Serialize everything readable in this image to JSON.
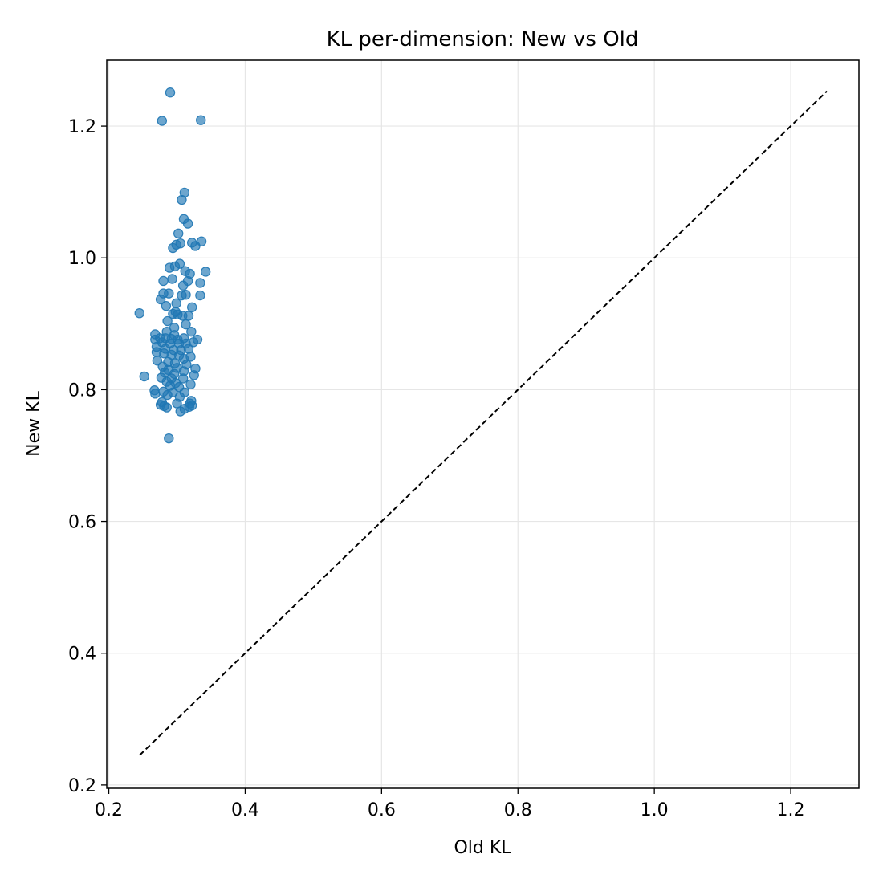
{
  "chart_data": {
    "type": "scatter",
    "title": "KL per-dimension: New vs Old",
    "xlabel": "Old KL",
    "ylabel": "New KL",
    "xlim": [
      0.197,
      1.3
    ],
    "ylim": [
      0.195,
      1.3
    ],
    "xticks": [
      0.2,
      0.4,
      0.6,
      0.8,
      1.0,
      1.2
    ],
    "xtick_labels": [
      "0.2",
      "0.4",
      "0.6",
      "0.8",
      "1.0",
      "1.2"
    ],
    "yticks": [
      0.2,
      0.4,
      0.6,
      0.8,
      1.0,
      1.2
    ],
    "ytick_labels": [
      "0.2",
      "0.4",
      "0.6",
      "0.8",
      "1.0",
      "1.2"
    ],
    "grid": true,
    "point_color": "#1f77b4",
    "point_alpha": 0.65,
    "reference_line": {
      "style": "dashed",
      "color": "#000000",
      "from": [
        0.245,
        0.245
      ],
      "to": [
        1.253,
        1.253
      ]
    },
    "points": [
      [
        0.29,
        1.251
      ],
      [
        0.278,
        1.208
      ],
      [
        0.335,
        1.209
      ],
      [
        0.311,
        1.099
      ],
      [
        0.307,
        1.088
      ],
      [
        0.31,
        1.059
      ],
      [
        0.316,
        1.052
      ],
      [
        0.302,
        1.037
      ],
      [
        0.336,
        1.025
      ],
      [
        0.322,
        1.023
      ],
      [
        0.305,
        1.022
      ],
      [
        0.299,
        1.02
      ],
      [
        0.294,
        1.015
      ],
      [
        0.327,
        1.018
      ],
      [
        0.304,
        0.991
      ],
      [
        0.297,
        0.987
      ],
      [
        0.289,
        0.985
      ],
      [
        0.312,
        0.98
      ],
      [
        0.342,
        0.979
      ],
      [
        0.319,
        0.976
      ],
      [
        0.293,
        0.968
      ],
      [
        0.28,
        0.965
      ],
      [
        0.334,
        0.962
      ],
      [
        0.316,
        0.965
      ],
      [
        0.309,
        0.958
      ],
      [
        0.288,
        0.946
      ],
      [
        0.28,
        0.946
      ],
      [
        0.313,
        0.944
      ],
      [
        0.307,
        0.943
      ],
      [
        0.334,
        0.943
      ],
      [
        0.276,
        0.937
      ],
      [
        0.299,
        0.931
      ],
      [
        0.284,
        0.927
      ],
      [
        0.322,
        0.925
      ],
      [
        0.298,
        0.918
      ],
      [
        0.301,
        0.914
      ],
      [
        0.294,
        0.915
      ],
      [
        0.245,
        0.916
      ],
      [
        0.317,
        0.912
      ],
      [
        0.308,
        0.912
      ],
      [
        0.286,
        0.904
      ],
      [
        0.313,
        0.899
      ],
      [
        0.296,
        0.894
      ],
      [
        0.285,
        0.888
      ],
      [
        0.296,
        0.883
      ],
      [
        0.321,
        0.888
      ],
      [
        0.268,
        0.884
      ],
      [
        0.275,
        0.878
      ],
      [
        0.283,
        0.878
      ],
      [
        0.292,
        0.877
      ],
      [
        0.301,
        0.876
      ],
      [
        0.31,
        0.878
      ],
      [
        0.33,
        0.876
      ],
      [
        0.268,
        0.876
      ],
      [
        0.278,
        0.872
      ],
      [
        0.29,
        0.87
      ],
      [
        0.303,
        0.87
      ],
      [
        0.313,
        0.87
      ],
      [
        0.324,
        0.872
      ],
      [
        0.27,
        0.865
      ],
      [
        0.283,
        0.862
      ],
      [
        0.295,
        0.86
      ],
      [
        0.306,
        0.86
      ],
      [
        0.317,
        0.862
      ],
      [
        0.27,
        0.857
      ],
      [
        0.281,
        0.855
      ],
      [
        0.292,
        0.853
      ],
      [
        0.303,
        0.852
      ],
      [
        0.32,
        0.85
      ],
      [
        0.31,
        0.847
      ],
      [
        0.271,
        0.844
      ],
      [
        0.287,
        0.842
      ],
      [
        0.297,
        0.84
      ],
      [
        0.314,
        0.838
      ],
      [
        0.279,
        0.835
      ],
      [
        0.3,
        0.833
      ],
      [
        0.327,
        0.832
      ],
      [
        0.287,
        0.83
      ],
      [
        0.31,
        0.828
      ],
      [
        0.282,
        0.826
      ],
      [
        0.296,
        0.824
      ],
      [
        0.325,
        0.822
      ],
      [
        0.252,
        0.82
      ],
      [
        0.277,
        0.818
      ],
      [
        0.292,
        0.817
      ],
      [
        0.309,
        0.817
      ],
      [
        0.285,
        0.812
      ],
      [
        0.298,
        0.81
      ],
      [
        0.32,
        0.808
      ],
      [
        0.29,
        0.806
      ],
      [
        0.303,
        0.804
      ],
      [
        0.267,
        0.799
      ],
      [
        0.28,
        0.797
      ],
      [
        0.294,
        0.796
      ],
      [
        0.311,
        0.796
      ],
      [
        0.268,
        0.794
      ],
      [
        0.286,
        0.792
      ],
      [
        0.304,
        0.789
      ],
      [
        0.321,
        0.783
      ],
      [
        0.278,
        0.781
      ],
      [
        0.3,
        0.779
      ],
      [
        0.319,
        0.779
      ],
      [
        0.276,
        0.777
      ],
      [
        0.281,
        0.775
      ],
      [
        0.322,
        0.776
      ],
      [
        0.285,
        0.773
      ],
      [
        0.318,
        0.774
      ],
      [
        0.311,
        0.771
      ],
      [
        0.305,
        0.767
      ],
      [
        0.288,
        0.726
      ]
    ]
  }
}
